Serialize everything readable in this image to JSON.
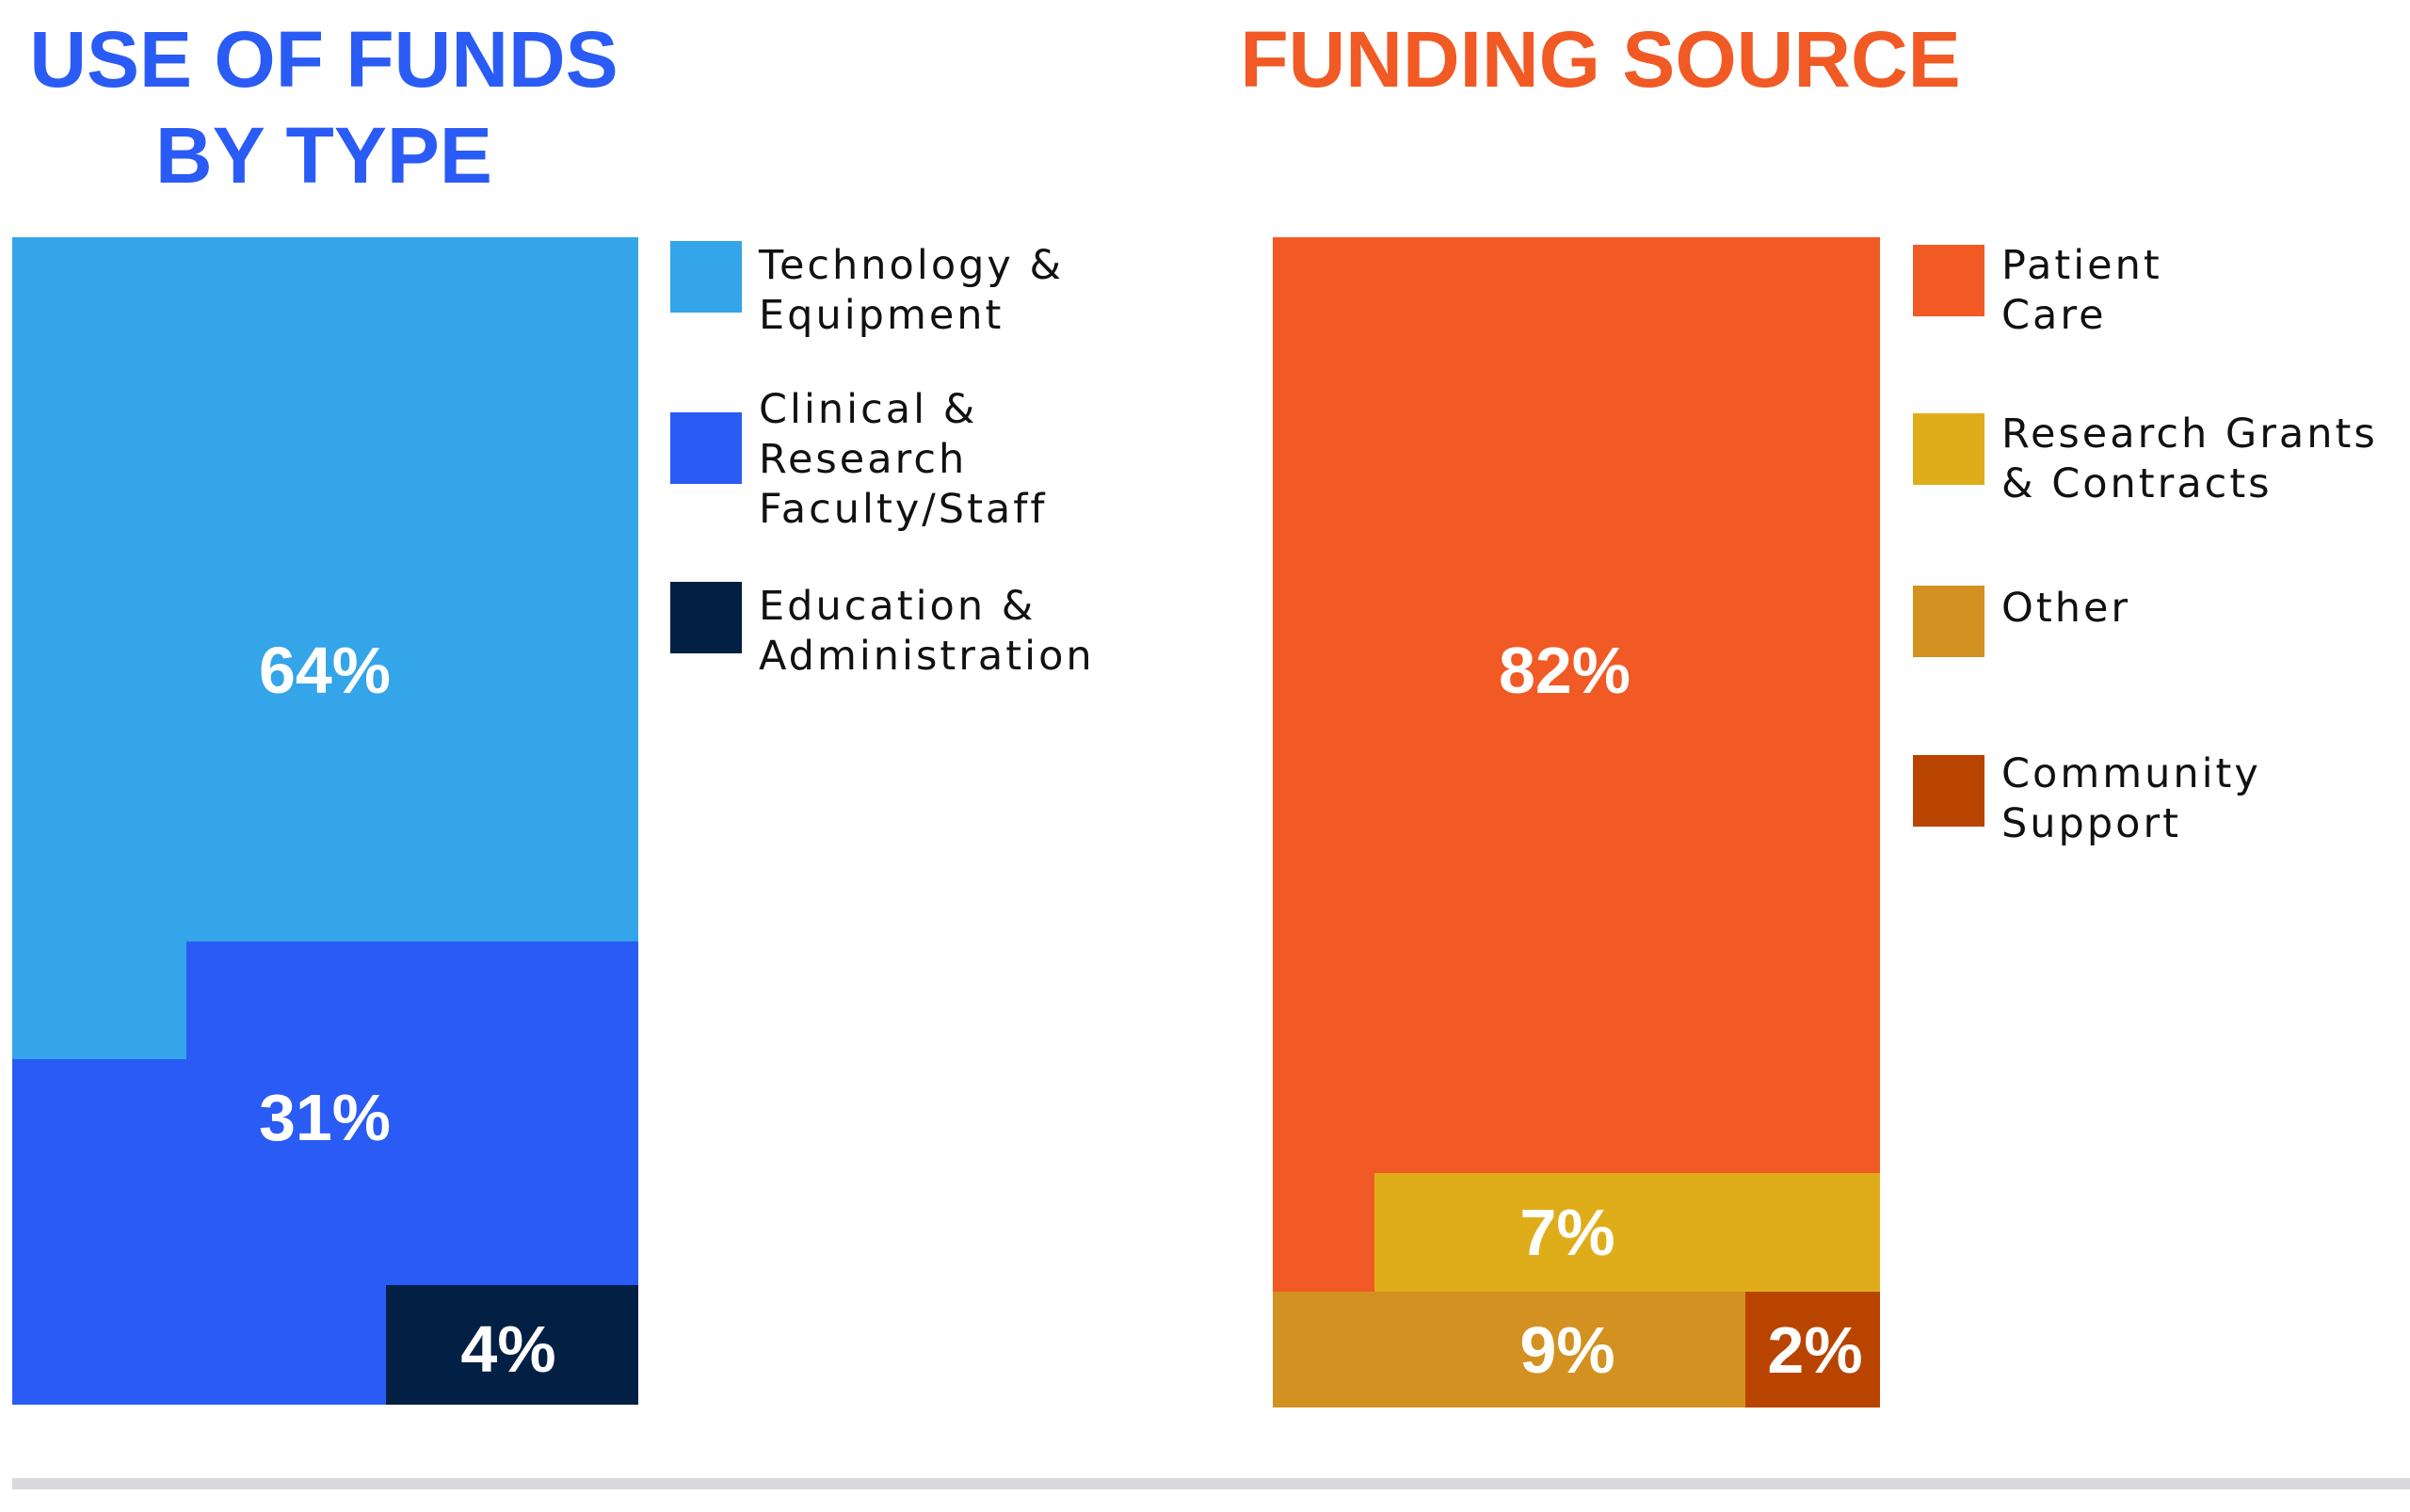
{
  "chart_data": [
    {
      "type": "area",
      "title": "USE OF FUNDS BY TYPE",
      "title_lines": [
        "USE OF FUNDS",
        "BY TYPE"
      ],
      "title_color": "#2a5bf5",
      "categories": [
        "Technology & Equipment",
        "Clinical & Research Faculty/Staff",
        "Education & Administration"
      ],
      "values": [
        64,
        31,
        4
      ],
      "value_labels": [
        "64%",
        "31%",
        "4%"
      ],
      "colors": [
        "#33a5e8",
        "#2a5bf5",
        "#021f44"
      ],
      "legend": [
        {
          "lines": [
            "Technology &",
            "Equipment"
          ],
          "color": "#33a5e8"
        },
        {
          "lines": [
            "Clinical &",
            "Research",
            "Faculty/Staff"
          ],
          "color": "#2a5bf5"
        },
        {
          "lines": [
            "Education &",
            "Administration"
          ],
          "color": "#021f44"
        }
      ],
      "legend_position": "right"
    },
    {
      "type": "area",
      "title": "FUNDING SOURCE",
      "title_lines": [
        "FUNDING SOURCE"
      ],
      "title_color": "#f15a24",
      "categories": [
        "Patient Care",
        "Research Grants & Contracts",
        "Other",
        "Community Support"
      ],
      "values": [
        82,
        7,
        9,
        2
      ],
      "value_labels": [
        "82%",
        "7%",
        "9%",
        "2%"
      ],
      "colors": [
        "#f15a24",
        "#e0ad1a",
        "#d39121",
        "#b84400"
      ],
      "legend": [
        {
          "lines": [
            "Patient",
            "Care"
          ],
          "color": "#f15a24"
        },
        {
          "lines": [
            "Research Grants",
            "& Contracts"
          ],
          "color": "#e0ad1a"
        },
        {
          "lines": [
            "Other"
          ],
          "color": "#d39121"
        },
        {
          "lines": [
            "Community",
            "Support"
          ],
          "color": "#b84400"
        }
      ],
      "legend_position": "right"
    }
  ]
}
